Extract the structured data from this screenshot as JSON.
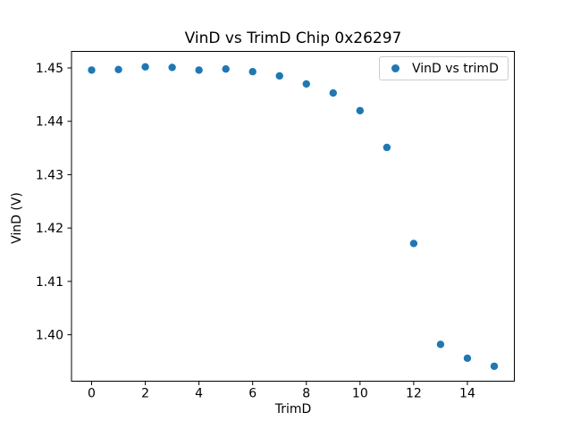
{
  "chart_data": {
    "type": "scatter",
    "title": "VinD vs TrimD Chip 0x26297",
    "xlabel": "TrimD",
    "ylabel": "VinD (V)",
    "legend": {
      "position": "upper right",
      "entries": [
        "VinD vs trimD"
      ]
    },
    "marker_color": "#1f77b4",
    "axes_color": "#000000",
    "legend_border_color": "#cccccc",
    "background_color": "#ffffff",
    "grid": false,
    "xlim": [
      -0.75,
      15.75
    ],
    "ylim": [
      1.3913,
      1.4531
    ],
    "xticks": [
      0,
      2,
      4,
      6,
      8,
      10,
      12,
      14
    ],
    "yticks": [
      "1.40",
      "1.41",
      "1.42",
      "1.43",
      "1.44",
      "1.45"
    ],
    "x": [
      0,
      1,
      2,
      3,
      4,
      5,
      6,
      7,
      8,
      9,
      10,
      11,
      12,
      13,
      14,
      15
    ],
    "y": [
      1.4496,
      1.4497,
      1.4502,
      1.4501,
      1.4496,
      1.4498,
      1.4493,
      1.4485,
      1.447,
      1.4453,
      1.442,
      1.4351,
      1.4171,
      1.3982,
      1.3956,
      1.3941
    ],
    "series": [
      {
        "name": "VinD vs trimD",
        "x": [
          0,
          1,
          2,
          3,
          4,
          5,
          6,
          7,
          8,
          9,
          10,
          11,
          12,
          13,
          14,
          15
        ],
        "values": [
          1.4496,
          1.4497,
          1.4502,
          1.4501,
          1.4496,
          1.4498,
          1.4493,
          1.4485,
          1.447,
          1.4453,
          1.442,
          1.4351,
          1.4171,
          1.3982,
          1.3956,
          1.3941
        ]
      }
    ]
  }
}
